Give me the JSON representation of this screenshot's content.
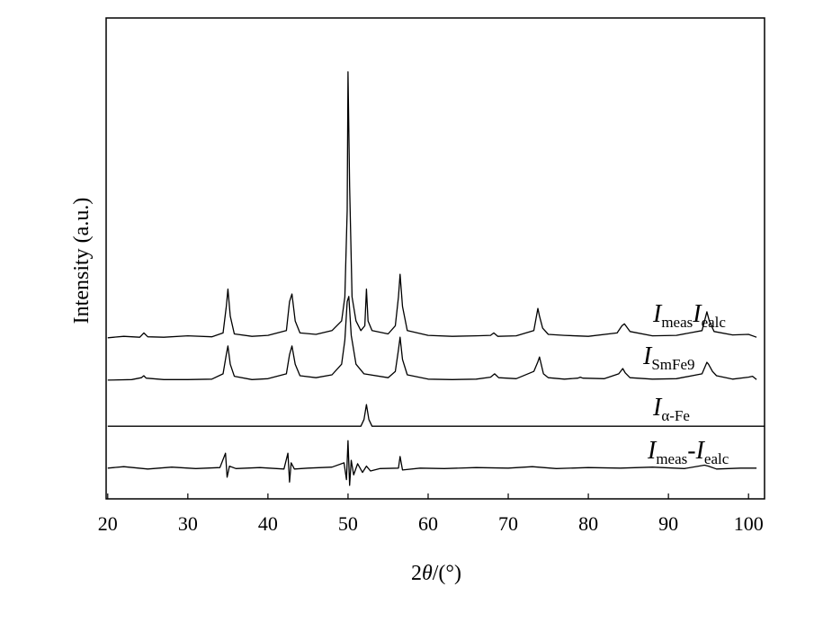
{
  "chart_data": {
    "type": "line",
    "x_label": [
      {
        "text": "2",
        "style": "normal"
      },
      {
        "text": "θ",
        "style": "italic"
      },
      {
        "text": "/(°)",
        "style": "normal"
      }
    ],
    "y_label": "Intensity (a.u.)",
    "xlim": [
      19.8,
      102
    ],
    "ylim": [
      0,
      100
    ],
    "xticks": [
      20,
      30,
      40,
      50,
      60,
      70,
      80,
      90,
      100
    ],
    "series": [
      {
        "label": [
          {
            "text": "I",
            "style": "italic"
          },
          {
            "text": "meas",
            "style": "sub"
          },
          {
            "text": "I",
            "style": "italic"
          },
          {
            "text": "ealc",
            "style": "sub"
          }
        ],
        "color": "#000000",
        "x": [
          20,
          22,
          24,
          24.5,
          25,
          27,
          30,
          33,
          34.4,
          34.8,
          35.0,
          35.3,
          35.8,
          38,
          40,
          42.3,
          42.7,
          43.0,
          43.4,
          44,
          46,
          48,
          49.2,
          49.6,
          49.9,
          50.0,
          50.2,
          50.5,
          51,
          51.6,
          52.1,
          52.3,
          52.5,
          53,
          55,
          55.9,
          56.3,
          56.5,
          56.8,
          57.4,
          60,
          63,
          66,
          67.8,
          68.2,
          68.7,
          71,
          73.2,
          73.7,
          73.9,
          74.3,
          75,
          77,
          80,
          83.6,
          84.2,
          84.5,
          85.2,
          88,
          91,
          94.2,
          94.8,
          95.1,
          95.7,
          98,
          100,
          101
        ],
        "values": [
          33.5,
          33.8,
          33.6,
          34.5,
          33.7,
          33.6,
          33.9,
          33.7,
          34.5,
          40,
          43.6,
          38,
          34.3,
          33.8,
          34,
          35,
          41,
          42.6,
          37,
          34.5,
          34.2,
          35,
          37,
          42,
          60,
          88.8,
          65,
          42,
          37,
          35,
          36,
          43.6,
          37,
          35,
          34.3,
          36,
          42,
          46.7,
          40,
          35,
          34,
          33.8,
          33.9,
          34,
          34.5,
          33.8,
          33.9,
          35,
          39.6,
          38,
          35.5,
          34.2,
          34,
          33.8,
          34.5,
          36,
          36.4,
          34.8,
          33.9,
          34,
          35,
          38.9,
          37,
          34.8,
          34.1,
          34.2,
          33.6
        ]
      },
      {
        "label": [
          {
            "text": "I",
            "style": "italic"
          },
          {
            "text": "SmFe9",
            "style": "sub"
          }
        ],
        "color": "#000000",
        "x": [
          20,
          23,
          24.2,
          24.5,
          24.8,
          27,
          30,
          33,
          34.4,
          34.8,
          35.0,
          35.3,
          35.8,
          38,
          40,
          42.3,
          42.7,
          43.0,
          43.4,
          44,
          46,
          48,
          49.2,
          49.6,
          49.9,
          50.1,
          50.4,
          51,
          52,
          55,
          55.9,
          56.3,
          56.5,
          56.8,
          57.4,
          60,
          63,
          66,
          67.8,
          68.3,
          68.8,
          71,
          73.2,
          73.7,
          73.9,
          74.4,
          75,
          77,
          78.7,
          79,
          79.3,
          82,
          83.8,
          84.3,
          84.6,
          85.2,
          88,
          91,
          94.2,
          94.8,
          95.0,
          95.5,
          96,
          98,
          100,
          100.5,
          101
        ],
        "values": [
          24.7,
          24.8,
          25.2,
          25.6,
          25.1,
          24.8,
          24.8,
          24.9,
          26,
          30,
          31.8,
          28,
          25.5,
          24.8,
          25,
          26,
          30,
          31.8,
          28,
          25.6,
          25.2,
          25.8,
          28,
          33,
          41,
          42.1,
          34,
          28,
          26,
          25.2,
          26.5,
          31,
          33.6,
          29,
          25.8,
          24.9,
          24.8,
          24.9,
          25.3,
          26.0,
          25.2,
          25,
          26.5,
          28.5,
          29.5,
          26,
          25.2,
          24.9,
          25.1,
          25.3,
          25.1,
          25,
          26,
          27.1,
          26.2,
          25.2,
          24.9,
          25,
          26,
          28.4,
          28,
          26.5,
          25.6,
          24.9,
          25.3,
          25.5,
          24.8
        ]
      },
      {
        "label": [
          {
            "text": "I",
            "style": "italic"
          },
          {
            "text": "α-Fe",
            "style": "sub"
          }
        ],
        "color": "#000000",
        "x": [
          20,
          51.6,
          52.0,
          52.3,
          52.6,
          53.0,
          102
        ],
        "values": [
          15.1,
          15.1,
          16.5,
          19.6,
          16.5,
          15.1,
          15.1
        ]
      },
      {
        "label": [
          {
            "text": "I",
            "style": "italic"
          },
          {
            "text": "meas",
            "style": "sub"
          },
          {
            "text": "-",
            "style": "normal"
          },
          {
            "text": "I",
            "style": "italic"
          },
          {
            "text": "ealc",
            "style": "sub"
          }
        ],
        "color": "#000000",
        "x": [
          20,
          22,
          25,
          28,
          31,
          34,
          34.7,
          34.9,
          35.2,
          36,
          39,
          42,
          42.5,
          42.7,
          42.9,
          43.3,
          45,
          48,
          49.5,
          49.8,
          50.0,
          50.2,
          50.4,
          50.7,
          51.2,
          51.8,
          52.3,
          52.8,
          54,
          56.3,
          56.5,
          56.8,
          59,
          62,
          66,
          70,
          73,
          76,
          80,
          84,
          88,
          92,
          94.5,
          95,
          96,
          99,
          101
        ],
        "values": [
          6.4,
          6.7,
          6.2,
          6.6,
          6.3,
          6.5,
          9.5,
          4.5,
          6.8,
          6.3,
          6.5,
          6.2,
          9.5,
          3.5,
          7.5,
          6.2,
          6.4,
          6.6,
          7.5,
          4,
          12.1,
          2.8,
          8,
          5,
          7.3,
          5.5,
          6.8,
          5.8,
          6.3,
          6.4,
          8.8,
          6,
          6.4,
          6.3,
          6.5,
          6.4,
          6.7,
          6.3,
          6.5,
          6.4,
          6.6,
          6.3,
          7,
          6.8,
          6.2,
          6.4,
          6.4
        ]
      }
    ]
  }
}
